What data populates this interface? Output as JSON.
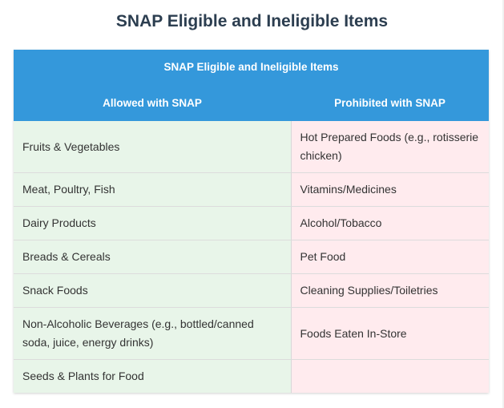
{
  "page_title": "SNAP Eligible and Ineligible Items",
  "table": {
    "caption": "SNAP Eligible and Ineligible Items",
    "headers": {
      "allowed": "Allowed with SNAP",
      "prohibited": "Prohibited with SNAP"
    },
    "rows": [
      {
        "allowed": "Fruits & Vegetables",
        "prohibited": "Hot Prepared Foods (e.g., rotisserie chicken)"
      },
      {
        "allowed": "Meat, Poultry, Fish",
        "prohibited": "Vitamins/Medicines"
      },
      {
        "allowed": "Dairy Products",
        "prohibited": "Alcohol/Tobacco"
      },
      {
        "allowed": "Breads & Cereals",
        "prohibited": "Pet Food"
      },
      {
        "allowed": "Snack Foods",
        "prohibited": "Cleaning Supplies/Toiletries"
      },
      {
        "allowed": "Non-Alcoholic Beverages (e.g., bottled/canned soda, juice, energy drinks)",
        "prohibited": "Foods Eaten In-Store"
      },
      {
        "allowed": "Seeds & Plants for Food",
        "prohibited": ""
      }
    ]
  },
  "colors": {
    "header_bg": "#3498db",
    "allowed_bg": "#e8f5e9",
    "prohibited_bg": "#ffebee",
    "title_text": "#2c3e50"
  }
}
